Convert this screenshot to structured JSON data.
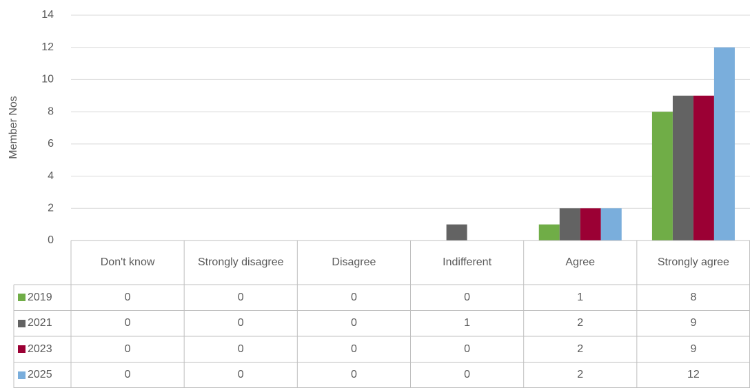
{
  "chart_data": {
    "type": "bar",
    "y_label": "Member Nos",
    "categories": [
      "Don't know",
      "Strongly disagree",
      "Disagree",
      "Indifferent",
      "Agree",
      "Strongly agree"
    ],
    "series": [
      {
        "name": "2019",
        "color": "#70ad47",
        "values": [
          0,
          0,
          0,
          0,
          1,
          8
        ]
      },
      {
        "name": "2021",
        "color": "#636363",
        "values": [
          0,
          0,
          0,
          1,
          2,
          9
        ]
      },
      {
        "name": "2023",
        "color": "#9b0034",
        "values": [
          0,
          0,
          0,
          0,
          2,
          9
        ]
      },
      {
        "name": "2025",
        "color": "#7aaedc",
        "values": [
          0,
          0,
          0,
          0,
          2,
          12
        ]
      }
    ],
    "ylim": [
      0,
      14
    ],
    "yticks": [
      0,
      2,
      4,
      6,
      8,
      10,
      12,
      14
    ],
    "grid": true
  }
}
